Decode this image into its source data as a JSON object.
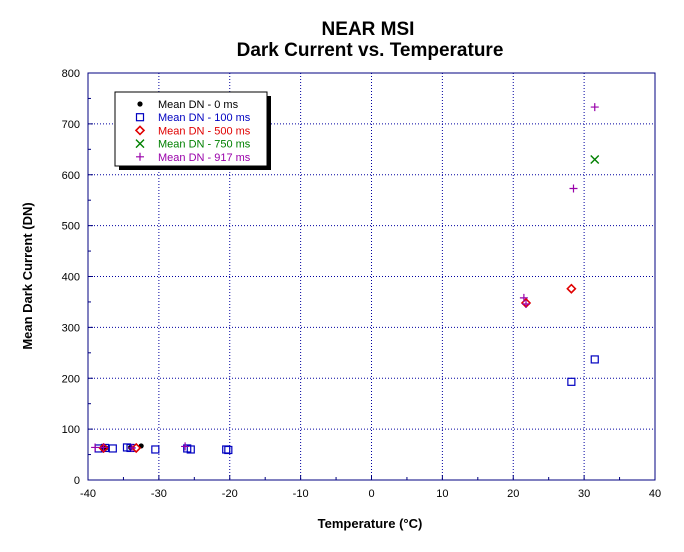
{
  "chart_data": {
    "type": "scatter",
    "title": "NEAR MSI",
    "subtitle": "Dark Current vs. Temperature",
    "xlabel": "Temperature (°C)",
    "ylabel": "Mean Dark Current (DN)",
    "xlim": [
      -40,
      40
    ],
    "ylim": [
      0,
      800
    ],
    "xticks": [
      -40,
      -30,
      -20,
      -10,
      0,
      10,
      20,
      30,
      40
    ],
    "yticks": [
      0,
      100,
      200,
      300,
      400,
      500,
      600,
      700,
      800
    ],
    "grid": true,
    "legend_position": "top-left",
    "series": [
      {
        "name": "Mean DN - 0 ms",
        "marker": "filled-circle",
        "color": "#000000",
        "points": [
          [
            -38,
            63
          ],
          [
            -37.5,
            63
          ],
          [
            -34,
            64
          ],
          [
            -32.5,
            67
          ]
        ]
      },
      {
        "name": "Mean DN - 100 ms",
        "marker": "open-square",
        "color": "#0000c0",
        "points": [
          [
            -38.5,
            62
          ],
          [
            -37.6,
            63
          ],
          [
            -36.5,
            62
          ],
          [
            -34.5,
            64
          ],
          [
            -34,
            63
          ],
          [
            -30.5,
            60
          ],
          [
            -26,
            62
          ],
          [
            -25.5,
            60
          ],
          [
            -20.5,
            60
          ],
          [
            -20.2,
            59
          ],
          [
            28.2,
            193
          ],
          [
            31.5,
            237
          ]
        ]
      },
      {
        "name": "Mean DN - 500 ms",
        "marker": "open-diamond",
        "color": "#e00000",
        "points": [
          [
            -37.8,
            63
          ],
          [
            -33.2,
            63
          ],
          [
            21.8,
            348
          ],
          [
            28.2,
            376
          ]
        ]
      },
      {
        "name": "Mean DN - 750 ms",
        "marker": "x",
        "color": "#008000",
        "points": [
          [
            31.5,
            630
          ]
        ]
      },
      {
        "name": "Mean DN - 917 ms",
        "marker": "plus",
        "color": "#9900aa",
        "points": [
          [
            -39,
            64
          ],
          [
            -37.8,
            64
          ],
          [
            -33.8,
            63
          ],
          [
            -26.3,
            66
          ],
          [
            21.5,
            358
          ],
          [
            28.5,
            573
          ],
          [
            31.5,
            733
          ],
          [
            21.8,
            346
          ]
        ]
      }
    ]
  }
}
